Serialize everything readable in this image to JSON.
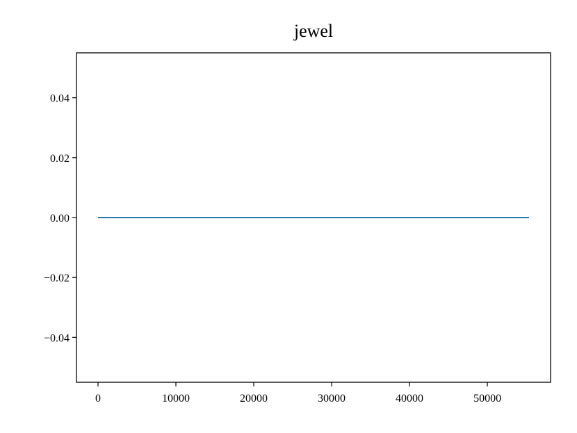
{
  "chart_data": {
    "type": "line",
    "title": "jewel",
    "x": [
      0,
      55350
    ],
    "series": [
      {
        "color": "#1f77b4",
        "values": [
          0,
          0
        ]
      }
    ],
    "xlim": [
      -2767.5,
      58117.5
    ],
    "xticks": [
      0,
      10000,
      20000,
      30000,
      40000,
      50000
    ],
    "ylim": [
      -0.055,
      0.055
    ],
    "yticks": [
      {
        "value": -0.04,
        "label": "−0.04"
      },
      {
        "value": -0.02,
        "label": "−0.02"
      },
      {
        "value": 0,
        "label": "0.00"
      },
      {
        "value": 0.02,
        "label": "0.02"
      },
      {
        "value": 0.04,
        "label": "0.04"
      }
    ],
    "grid": false
  }
}
